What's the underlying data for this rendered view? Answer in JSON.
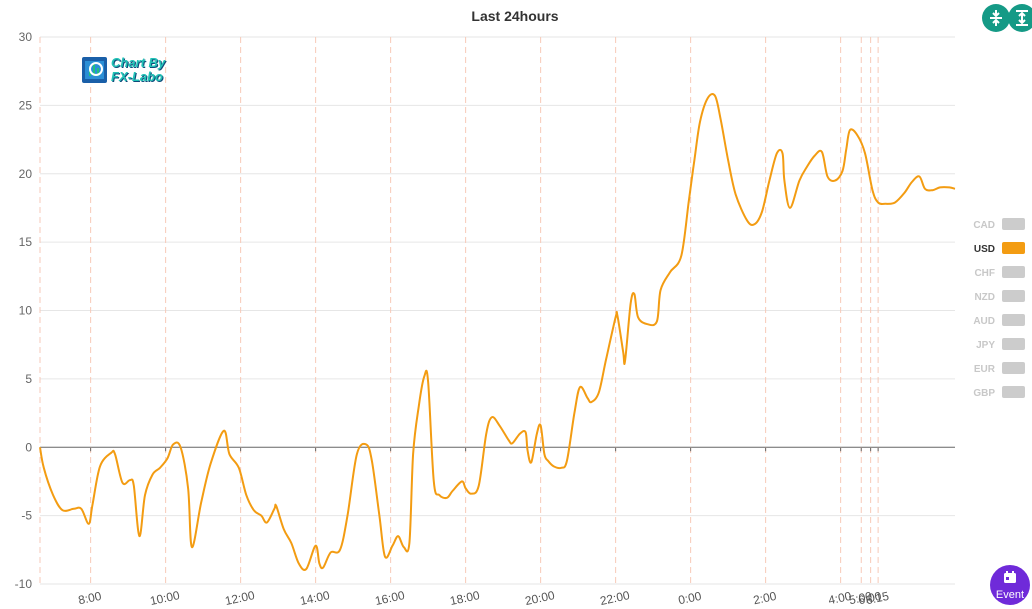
{
  "title": "Last 24hours",
  "logo": {
    "line1": "Chart By",
    "line2": "FX-Labo"
  },
  "legend": [
    {
      "label": "CAD",
      "active": false
    },
    {
      "label": "USD",
      "active": true
    },
    {
      "label": "CHF",
      "active": false
    },
    {
      "label": "NZD",
      "active": false
    },
    {
      "label": "AUD",
      "active": false
    },
    {
      "label": "JPY",
      "active": false
    },
    {
      "label": "EUR",
      "active": false
    },
    {
      "label": "GBP",
      "active": false
    }
  ],
  "buttons": {
    "event_label": "Event"
  },
  "colors": {
    "series": "#f39c12",
    "grid": "#e6e6e6",
    "vline": "#f7c9b8"
  },
  "chart_data": {
    "type": "line",
    "title": "Last 24hours",
    "ylim": [
      -10,
      30
    ],
    "yticks": [
      -10,
      -5,
      0,
      5,
      10,
      15,
      20,
      25,
      30
    ],
    "x_tick_labels": [
      {
        "t": 2.85,
        "label": "8:00"
      },
      {
        "t": 4.85,
        "label": "10:00"
      },
      {
        "t": 6.85,
        "label": "12:00"
      },
      {
        "t": 8.85,
        "label": "14:00"
      },
      {
        "t": 10.85,
        "label": "16:00"
      },
      {
        "t": 12.85,
        "label": "18:00"
      },
      {
        "t": 14.85,
        "label": "20:00"
      },
      {
        "t": 16.85,
        "label": "22:00"
      },
      {
        "t": 18.85,
        "label": "0:00"
      },
      {
        "t": 20.85,
        "label": "2:00"
      },
      {
        "t": 22.85,
        "label": "4:00"
      },
      {
        "t": 23.4,
        "label": "5:00"
      },
      {
        "t": 23.65,
        "label": "6:00"
      },
      {
        "t": 23.85,
        "label": "6:15"
      }
    ],
    "vlines": [
      1.5,
      2.85,
      4.85,
      6.85,
      8.85,
      10.85,
      12.85,
      14.85,
      16.85,
      18.85,
      20.85,
      22.85,
      23.4,
      23.65,
      23.85
    ],
    "series": [
      {
        "name": "USD",
        "points": [
          [
            1.5,
            0
          ],
          [
            1.6,
            -1.5
          ],
          [
            1.85,
            -3.5
          ],
          [
            2.1,
            -4.6
          ],
          [
            2.4,
            -4.5
          ],
          [
            2.6,
            -4.5
          ],
          [
            2.8,
            -5.6
          ],
          [
            2.9,
            -4.2
          ],
          [
            3.1,
            -1.4
          ],
          [
            3.4,
            -0.4
          ],
          [
            3.5,
            -0.5
          ],
          [
            3.7,
            -2.6
          ],
          [
            3.9,
            -2.4
          ],
          [
            4.0,
            -2.8
          ],
          [
            4.15,
            -6.5
          ],
          [
            4.3,
            -3.5
          ],
          [
            4.5,
            -2.0
          ],
          [
            4.7,
            -1.5
          ],
          [
            4.9,
            -0.8
          ],
          [
            5.05,
            0.2
          ],
          [
            5.25,
            0.0
          ],
          [
            5.45,
            -3.0
          ],
          [
            5.55,
            -7.3
          ],
          [
            5.8,
            -4.0
          ],
          [
            6.05,
            -1.2
          ],
          [
            6.4,
            1.2
          ],
          [
            6.55,
            -0.5
          ],
          [
            6.8,
            -1.5
          ],
          [
            7.0,
            -3.5
          ],
          [
            7.2,
            -4.6
          ],
          [
            7.4,
            -5.0
          ],
          [
            7.55,
            -5.5
          ],
          [
            7.75,
            -4.5
          ],
          [
            7.8,
            -4.3
          ],
          [
            8.0,
            -6.0
          ],
          [
            8.2,
            -7.0
          ],
          [
            8.4,
            -8.5
          ],
          [
            8.6,
            -8.9
          ],
          [
            8.85,
            -7.2
          ],
          [
            8.95,
            -8.5
          ],
          [
            9.05,
            -8.8
          ],
          [
            9.25,
            -7.7
          ],
          [
            9.5,
            -7.5
          ],
          [
            9.7,
            -5.0
          ],
          [
            9.95,
            -0.5
          ],
          [
            10.2,
            0.2
          ],
          [
            10.35,
            -1.0
          ],
          [
            10.55,
            -5.0
          ],
          [
            10.7,
            -8.0
          ],
          [
            10.9,
            -7.2
          ],
          [
            11.05,
            -6.5
          ],
          [
            11.2,
            -7.3
          ],
          [
            11.35,
            -7.0
          ],
          [
            11.45,
            -0.5
          ],
          [
            11.6,
            3.0
          ],
          [
            11.75,
            5.2
          ],
          [
            11.85,
            4.8
          ],
          [
            12.0,
            -2.5
          ],
          [
            12.15,
            -3.5
          ],
          [
            12.35,
            -3.7
          ],
          [
            12.5,
            -3.2
          ],
          [
            12.75,
            -2.5
          ],
          [
            12.85,
            -3.0
          ],
          [
            13.0,
            -3.4
          ],
          [
            13.2,
            -2.8
          ],
          [
            13.4,
            1.0
          ],
          [
            13.55,
            2.2
          ],
          [
            13.75,
            1.6
          ],
          [
            14.0,
            0.5
          ],
          [
            14.1,
            0.3
          ],
          [
            14.3,
            1.0
          ],
          [
            14.45,
            1.1
          ],
          [
            14.5,
            -0.2
          ],
          [
            14.6,
            -1.1
          ],
          [
            14.75,
            1.0
          ],
          [
            14.85,
            1.6
          ],
          [
            14.95,
            -0.5
          ],
          [
            15.05,
            -1.0
          ],
          [
            15.2,
            -1.4
          ],
          [
            15.4,
            -1.5
          ],
          [
            15.55,
            -1.0
          ],
          [
            15.75,
            2.5
          ],
          [
            15.9,
            4.4
          ],
          [
            16.1,
            3.6
          ],
          [
            16.2,
            3.3
          ],
          [
            16.4,
            4.0
          ],
          [
            16.6,
            6.5
          ],
          [
            16.85,
            9.5
          ],
          [
            16.9,
            9.6
          ],
          [
            17.05,
            7.0
          ],
          [
            17.1,
            6.3
          ],
          [
            17.25,
            10.5
          ],
          [
            17.35,
            11.2
          ],
          [
            17.45,
            9.5
          ],
          [
            17.7,
            9.0
          ],
          [
            17.95,
            9.2
          ],
          [
            18.05,
            11.5
          ],
          [
            18.3,
            12.8
          ],
          [
            18.6,
            14.0
          ],
          [
            18.8,
            18.0
          ],
          [
            18.95,
            21.0
          ],
          [
            19.1,
            23.8
          ],
          [
            19.3,
            25.5
          ],
          [
            19.5,
            25.7
          ],
          [
            19.65,
            24.0
          ],
          [
            19.85,
            21.0
          ],
          [
            20.05,
            18.5
          ],
          [
            20.35,
            16.6
          ],
          [
            20.55,
            16.3
          ],
          [
            20.75,
            17.2
          ],
          [
            20.95,
            19.5
          ],
          [
            21.15,
            21.5
          ],
          [
            21.3,
            21.5
          ],
          [
            21.35,
            19.5
          ],
          [
            21.5,
            17.5
          ],
          [
            21.75,
            19.5
          ],
          [
            21.95,
            20.5
          ],
          [
            22.15,
            21.3
          ],
          [
            22.35,
            21.6
          ],
          [
            22.5,
            19.8
          ],
          [
            22.7,
            19.5
          ],
          [
            22.9,
            20.2
          ],
          [
            23.0,
            21.8
          ],
          [
            23.1,
            23.2
          ],
          [
            23.3,
            22.8
          ],
          [
            23.5,
            21.5
          ],
          [
            23.7,
            18.8
          ],
          [
            23.85,
            17.9
          ],
          [
            24.05,
            17.8
          ],
          [
            24.3,
            17.9
          ],
          [
            24.55,
            18.6
          ],
          [
            24.75,
            19.4
          ],
          [
            24.95,
            19.8
          ],
          [
            25.1,
            18.9
          ],
          [
            25.3,
            18.8
          ],
          [
            25.5,
            19.0
          ],
          [
            25.75,
            19.0
          ],
          [
            25.9,
            18.9
          ]
        ]
      }
    ]
  }
}
